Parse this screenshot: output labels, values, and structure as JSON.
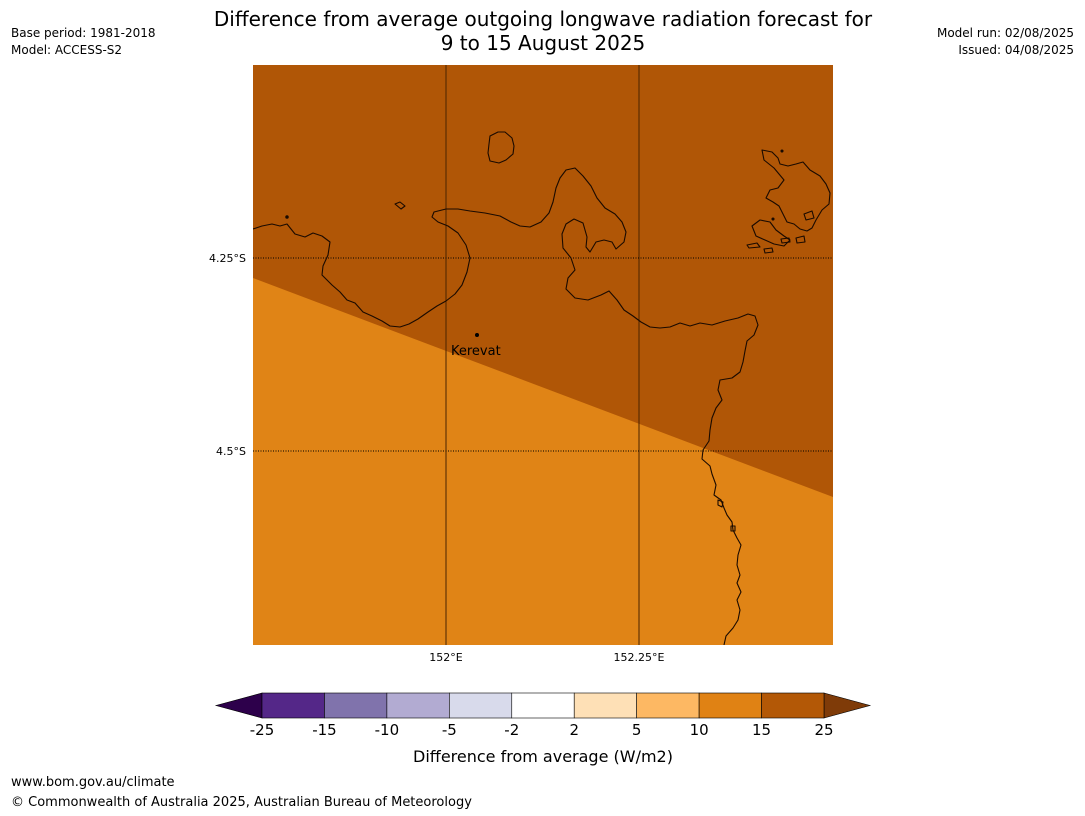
{
  "header": {
    "title_line1": "Difference from average outgoing longwave radiation forecast for",
    "title_line2": "9 to 15 August 2025",
    "base_period": "Base period: 1981-2018",
    "model": "Model: ACCESS-S2",
    "model_run": "Model run: 02/08/2025",
    "issued": "Issued: 04/08/2025"
  },
  "map": {
    "lat_labels": [
      "4.25°S",
      "4.5°S"
    ],
    "lon_labels": [
      "152°E",
      "152.25°E"
    ],
    "place": {
      "name": "Kerevat"
    },
    "region_colors": {
      "upper": "#b05606",
      "lower": "#e08416"
    }
  },
  "colorbar": {
    "label": "Difference from average (W/m2)",
    "ticks": [
      "-25",
      "-15",
      "-10",
      "-5",
      "-2",
      "2",
      "5",
      "10",
      "15",
      "25"
    ],
    "colors": [
      "#542788",
      "#8073ac",
      "#b2abd2",
      "#d8daeb",
      "#ffffff",
      "#fee0b6",
      "#fdb863",
      "#e08214",
      "#b35806"
    ],
    "extend_low": "#2d004b",
    "extend_high": "#7f3b08"
  },
  "footer": {
    "url": "www.bom.gov.au/climate",
    "copyright": "© Commonwealth of Australia 2025, Australian Bureau of Meteorology"
  }
}
